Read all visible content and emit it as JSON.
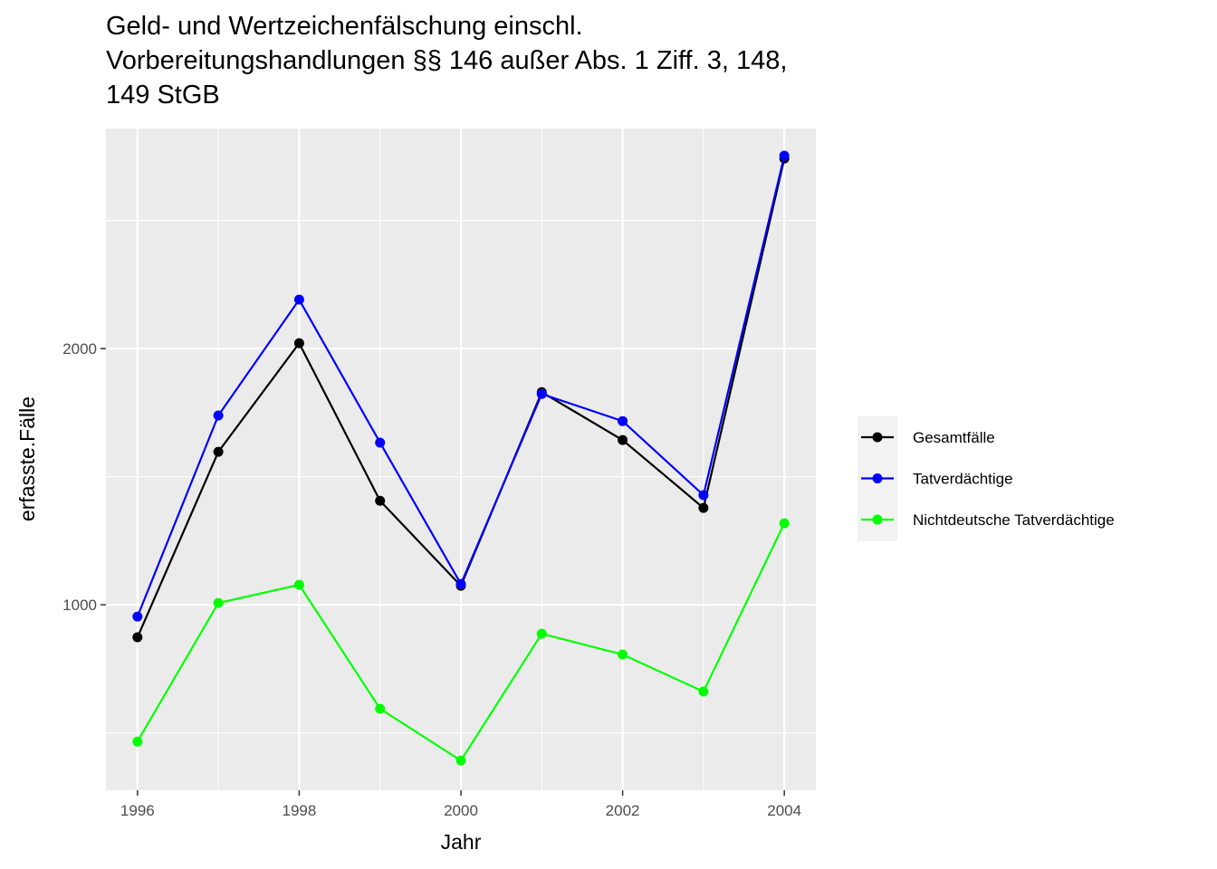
{
  "chart_data": {
    "type": "line",
    "title": [
      "Geld- und Wertzeichenfälschung einschl.",
      "Vorbereitungshandlungen §§ 146 außer Abs. 1 Ziff. 3, 148,",
      "149 StGB"
    ],
    "x_label": "Jahr",
    "y_label": "erfasste.Fälle",
    "x": [
      1996,
      1997,
      1998,
      1999,
      2000,
      2001,
      2002,
      2003,
      2004
    ],
    "series": [
      {
        "name": "Gesamtfälle",
        "color": "#000000",
        "values": [
          873,
          1597,
          2021,
          1406,
          1074,
          1830,
          1643,
          1378,
          2742
        ]
      },
      {
        "name": "Tatverdächtige",
        "color": "#0000ff",
        "values": [
          954,
          1739,
          2191,
          1633,
          1081,
          1823,
          1717,
          1428,
          2753
        ]
      },
      {
        "name": "Nichtdeutsche Tatverdächtige",
        "color": "#00ff00",
        "values": [
          466,
          1007,
          1078,
          594,
          392,
          887,
          806,
          661,
          1318
        ]
      }
    ],
    "xlim": [
      1995.61,
      2004.39
    ],
    "ylim": [
      276,
      2859
    ],
    "xticks": [
      1996,
      1998,
      2000,
      2002,
      2004
    ],
    "yticks": [
      1000,
      2000
    ],
    "minor_xticks": [
      1997,
      1999,
      2001,
      2003
    ],
    "minor_yticks": [
      500,
      1500,
      2500
    ],
    "grid": true,
    "legend": "right"
  }
}
